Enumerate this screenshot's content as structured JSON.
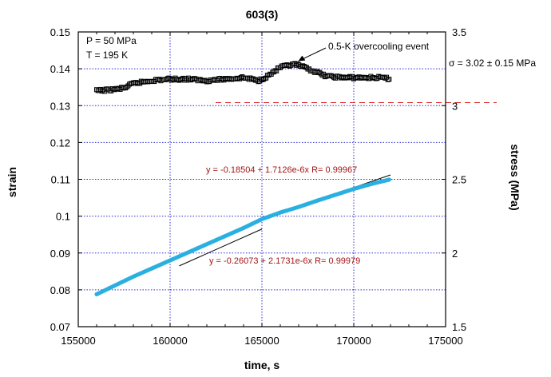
{
  "chart_data": {
    "type": "scatter",
    "title": "603(3)",
    "xlabel": "time, s",
    "ylabel_left": "strain",
    "ylabel_right": "stress (MPa)",
    "xlim": [
      155000,
      175000
    ],
    "ylim_left": [
      0.07,
      0.15
    ],
    "ylim_right": [
      1.5,
      3.5
    ],
    "x_ticks": [
      "155000",
      "160000",
      "165000",
      "170000",
      "175000"
    ],
    "y_left_ticks": [
      "0.07",
      "0.08",
      "0.09",
      "0.1",
      "0.11",
      "0.12",
      "0.13",
      "0.14",
      "0.15"
    ],
    "y_right_ticks": [
      "1.5",
      "2",
      "2.5",
      "3",
      "3.5"
    ],
    "grid": true,
    "conditions": [
      "P = 50 MPa",
      "T = 195 K"
    ],
    "series": [
      {
        "axis": "left",
        "color": "#2ab0e0",
        "points": [
          [
            156000,
            0.0788
          ],
          [
            157000,
            0.0812
          ],
          [
            158000,
            0.0836
          ],
          [
            159000,
            0.0858
          ],
          [
            160000,
            0.088
          ],
          [
            161000,
            0.0902
          ],
          [
            162000,
            0.0924
          ],
          [
            163000,
            0.0946
          ],
          [
            164000,
            0.0968
          ],
          [
            165000,
            0.0992
          ],
          [
            166000,
            0.101
          ],
          [
            167000,
            0.1025
          ],
          [
            168000,
            0.1042
          ],
          [
            169000,
            0.1058
          ],
          [
            170000,
            0.1074
          ],
          [
            171000,
            0.1088
          ],
          [
            172000,
            0.11
          ]
        ]
      },
      {
        "axis": "right",
        "color": "#000000",
        "points": [
          [
            156000,
            3.1
          ],
          [
            157000,
            3.11
          ],
          [
            157500,
            3.12
          ],
          [
            158000,
            3.15
          ],
          [
            159000,
            3.17
          ],
          [
            160000,
            3.18
          ],
          [
            161000,
            3.18
          ],
          [
            162000,
            3.17
          ],
          [
            163000,
            3.18
          ],
          [
            164000,
            3.19
          ],
          [
            164800,
            3.17
          ],
          [
            165300,
            3.2
          ],
          [
            166000,
            3.26
          ],
          [
            166800,
            3.28
          ],
          [
            167500,
            3.25
          ],
          [
            168500,
            3.2
          ],
          [
            169500,
            3.19
          ],
          [
            170500,
            3.19
          ],
          [
            171500,
            3.19
          ],
          [
            172000,
            3.18
          ]
        ]
      }
    ],
    "fits": [
      {
        "label": "y = -0.18504 + 1.7126e-6x   R= 0.99967",
        "x_range": [
          169200,
          172000
        ],
        "color": "#000000"
      },
      {
        "label": "y = -0.26073 + 2.1731e-6x   R= 0.99979",
        "x_range": [
          160500,
          165000
        ],
        "color": "#000000"
      }
    ],
    "mean_stress": {
      "value": 3.02,
      "label": "σ = 3.02 ± 0.15 MPa",
      "color": "#e02020"
    },
    "annotation": {
      "text": "0.5-K overcooling event",
      "x": 166800,
      "y": 3.28
    }
  }
}
